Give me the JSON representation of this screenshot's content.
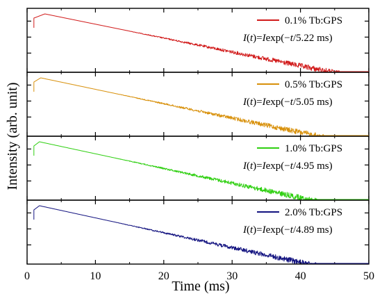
{
  "chart_data": {
    "type": "line",
    "xlabel": "Time (ms)",
    "ylabel": "Intensity (arb. unit)",
    "xlim": [
      0,
      50
    ],
    "xticks": [
      0,
      10,
      20,
      30,
      40,
      50
    ],
    "y_scale": "log",
    "grid": false,
    "legend_placement": "top-right of each panel",
    "panels": [
      {
        "series_name": "0.1% Tb:GPS",
        "fit_prefix": "exp(−",
        "fit_var": "t",
        "fit_text": "/5.22 ms)",
        "lifetime_ms": 5.22,
        "color": "#d11a1a",
        "onset_ms": 1.0,
        "peak_ms": 2.6
      },
      {
        "series_name": "0.5% Tb:GPS",
        "fit_prefix": "exp(−",
        "fit_var": "t",
        "fit_text": "/5.05 ms)",
        "lifetime_ms": 5.05,
        "color": "#d8900a",
        "onset_ms": 1.0,
        "peak_ms": 2.0
      },
      {
        "series_name": "1.0% Tb:GPS",
        "fit_prefix": "exp(−",
        "fit_var": "t",
        "fit_text": "/4.95 ms)",
        "lifetime_ms": 4.95,
        "color": "#2ecf10",
        "onset_ms": 1.0,
        "peak_ms": 1.8
      },
      {
        "series_name": "2.0% Tb:GPS",
        "fit_prefix": "exp(−",
        "fit_var": "t",
        "fit_text": "/4.89 ms)",
        "lifetime_ms": 4.89,
        "color": "#11117f",
        "onset_ms": 1.0,
        "peak_ms": 1.8
      }
    ]
  }
}
